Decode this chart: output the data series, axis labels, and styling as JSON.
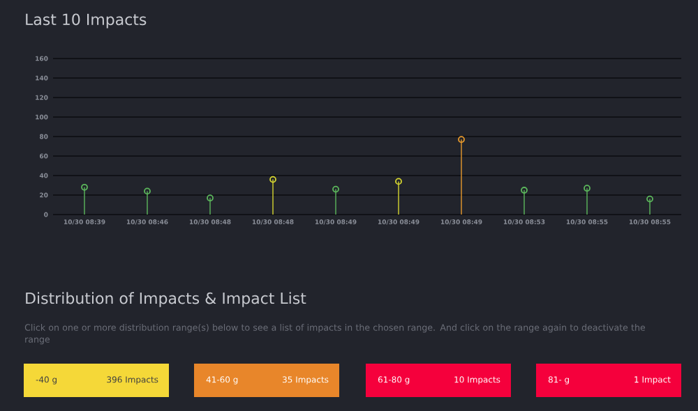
{
  "chart_data": [
    {
      "type": "lollipop",
      "title": "Last 10 Impacts",
      "categories": [
        "10/30 08:39",
        "10/30 08:46",
        "10/30 08:48",
        "10/30 08:48",
        "10/30 08:49",
        "10/30 08:49",
        "10/30 08:49",
        "10/30 08:53",
        "10/30 08:55",
        "10/30 08:55"
      ],
      "values": [
        28,
        24,
        17,
        36,
        26,
        34,
        77,
        25,
        27,
        16
      ],
      "colors": [
        "#5cb85c",
        "#5cb85c",
        "#5cb85c",
        "#d6d630",
        "#5cb85c",
        "#d6d630",
        "#e89a2c",
        "#5cb85c",
        "#5cb85c",
        "#5cb85c"
      ],
      "ylim": [
        0,
        160
      ],
      "yticks": [
        0,
        20,
        40,
        60,
        80,
        100,
        120,
        140,
        160
      ],
      "grid": "y",
      "marker": "circle"
    },
    {
      "type": "other",
      "title": "Distribution of Impacts & Impact List",
      "subtitle": "Click on one or more distribution range(s) below to see a list of impacts in the chosen range. And click on the range again to deactivate the range",
      "categories": [
        "-40 g",
        "41-60 g",
        "61-80 g",
        "81- g"
      ],
      "annotations": [
        "396 Impacts",
        "35 Impacts",
        "10 Impacts",
        "1 Impact"
      ],
      "colors": [
        "#f5d838",
        "#e8862a",
        "#f5003c",
        "#f5003c"
      ]
    }
  ]
}
